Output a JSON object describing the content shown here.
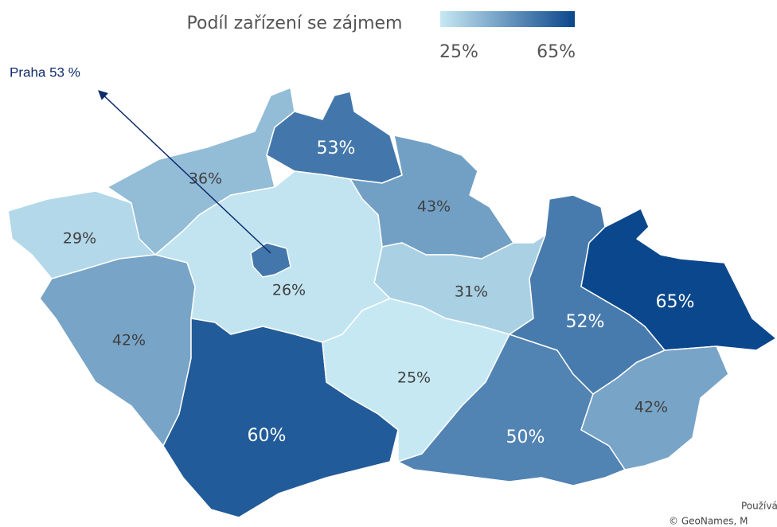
{
  "chart_data": {
    "type": "choropleth",
    "title": "Podíl zařízení se zájmem",
    "legend": {
      "min": {
        "value": 25,
        "label": "25%"
      },
      "max": {
        "value": 65,
        "label": "65%"
      },
      "colors": [
        "#c6e8f3",
        "#0b478c"
      ]
    },
    "values": [
      29,
      36,
      53,
      43,
      31,
      26,
      53,
      42,
      60,
      25,
      50,
      52,
      65,
      42
    ],
    "value_labels": [
      "29%",
      "36%",
      "53%",
      "43%",
      "31%",
      "26%",
      null,
      "42%",
      "60%",
      "25%",
      "50%",
      "52%",
      "65%",
      "42%"
    ],
    "annotation": "Praha 53 %",
    "attribution": [
      "Používá",
      "© GeoNames, M"
    ]
  }
}
